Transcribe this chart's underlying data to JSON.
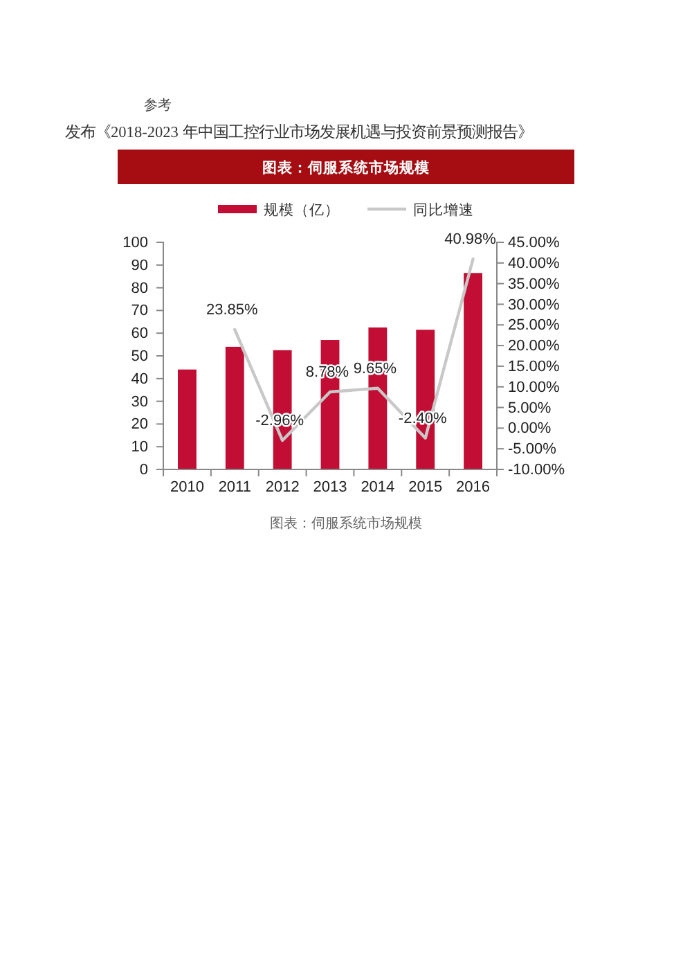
{
  "chart_data": {
    "type": "bar",
    "title": "图表：伺服系统市场规模",
    "annotations": [
      "参考",
      "发布《2018-2023 年中国工控行业市场发展机遇与投资前景预测报告》",
      "图表：伺服系统市场规模"
    ],
    "categories": [
      "2010",
      "2011",
      "2012",
      "2013",
      "2014",
      "2015",
      "2016"
    ],
    "series": [
      {
        "name": "规模（亿）",
        "color": "#c20e35",
        "values": [
          44,
          54,
          52.5,
          57,
          62.5,
          61.5,
          86.5
        ]
      },
      {
        "name": "同比增速",
        "type": "line",
        "axis": "y2",
        "color": "#c8c8c8",
        "values": [
          null,
          23.85,
          -2.96,
          8.78,
          9.65,
          -2.4,
          40.98
        ],
        "value_labels": [
          null,
          "23.85%",
          "-2.96%",
          "8.78%",
          "9.65%",
          "-2.40%",
          "40.98%"
        ]
      }
    ],
    "ylim": [
      0,
      100
    ],
    "yticks": [
      0,
      10,
      20,
      30,
      40,
      50,
      60,
      70,
      80,
      90,
      100
    ],
    "y2lim": [
      -10,
      45
    ],
    "y2ticks": [
      {
        "value": -10,
        "label": "-10.00%"
      },
      {
        "value": -5,
        "label": "-5.00%"
      },
      {
        "value": 0,
        "label": "0.00%"
      },
      {
        "value": 5,
        "label": "5.00%"
      },
      {
        "value": 10,
        "label": "10.00%"
      },
      {
        "value": 15,
        "label": "15.00%"
      },
      {
        "value": 20,
        "label": "20.00%"
      },
      {
        "value": 25,
        "label": "25.00%"
      },
      {
        "value": 30,
        "label": "30.00%"
      },
      {
        "value": 35,
        "label": "35.00%"
      },
      {
        "value": 40,
        "label": "40.00%"
      },
      {
        "value": 45,
        "label": "45.00%"
      }
    ],
    "legend": "top"
  }
}
